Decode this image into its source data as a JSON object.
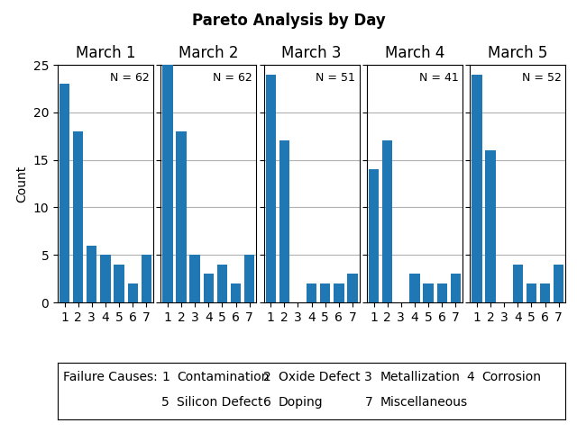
{
  "title": "Pareto Analysis by Day",
  "chart_data": [
    {
      "type": "bar",
      "title": "March 1",
      "ylabel": "Count",
      "categories": [
        "1",
        "2",
        "3",
        "4",
        "5",
        "6",
        "7"
      ],
      "values": [
        23,
        18,
        6,
        5,
        4,
        2,
        5
      ],
      "ylim": [
        0,
        25
      ],
      "yticks": [
        0,
        5,
        10,
        15,
        20,
        25
      ],
      "grid": true,
      "annotations": [
        "N = 62"
      ]
    },
    {
      "type": "bar",
      "title": "March 2",
      "categories": [
        "1",
        "2",
        "3",
        "4",
        "5",
        "6",
        "7"
      ],
      "values": [
        25,
        18,
        5,
        3,
        4,
        2,
        5
      ],
      "ylim": [
        0,
        25
      ],
      "yticks": [
        0,
        5,
        10,
        15,
        20,
        25
      ],
      "grid": true,
      "tick_labels": "x",
      "annotations": [
        "N = 62"
      ]
    },
    {
      "type": "bar",
      "title": "March 3",
      "categories": [
        "1",
        "2",
        "3",
        "4",
        "5",
        "6",
        "7"
      ],
      "values": [
        24,
        17,
        0,
        2,
        2,
        2,
        3
      ],
      "ylim": [
        0,
        25
      ],
      "yticks": [
        0,
        5,
        10,
        15,
        20,
        25
      ],
      "grid": true,
      "tick_labels": "x",
      "annotations": [
        "N = 51"
      ]
    },
    {
      "type": "bar",
      "title": "March 4",
      "categories": [
        "1",
        "2",
        "3",
        "4",
        "5",
        "6",
        "7"
      ],
      "values": [
        14,
        17,
        0,
        3,
        2,
        2,
        3
      ],
      "ylim": [
        0,
        25
      ],
      "yticks": [
        0,
        5,
        10,
        15,
        20,
        25
      ],
      "grid": true,
      "tick_labels": "x",
      "annotations": [
        "N = 41"
      ]
    },
    {
      "type": "bar",
      "title": "March 5",
      "categories": [
        "1",
        "2",
        "3",
        "4",
        "5",
        "6",
        "7"
      ],
      "values": [
        24,
        16,
        0,
        4,
        2,
        2,
        4
      ],
      "ylim": [
        0,
        25
      ],
      "yticks": [
        0,
        5,
        10,
        15,
        20,
        25
      ],
      "grid": true,
      "tick_labels": "x",
      "annotations": [
        "N = 52"
      ]
    }
  ],
  "annotations": {
    "title": "Failure Causes:",
    "items": [
      [
        "1",
        "Contamination"
      ],
      [
        "2",
        "Oxide Defect"
      ],
      [
        "3",
        "Metallization"
      ],
      [
        "4",
        "Corrosion"
      ],
      [
        "5",
        "Silicon Defect"
      ],
      [
        "6",
        "Doping"
      ],
      [
        "7",
        "Miscellaneous"
      ]
    ]
  }
}
